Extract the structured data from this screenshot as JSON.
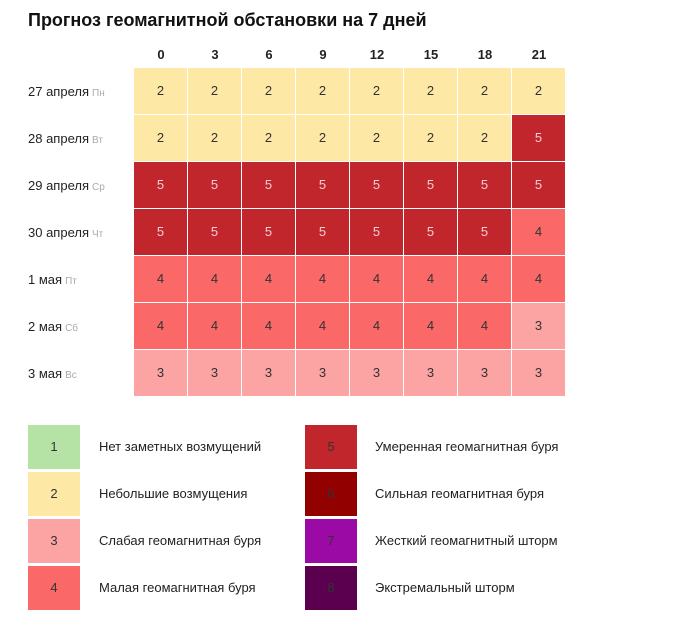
{
  "title": "Прогноз геомагнитной обстановки на 7 дней",
  "columns": [
    "0",
    "3",
    "6",
    "9",
    "12",
    "15",
    "18",
    "21"
  ],
  "rows": [
    {
      "date": "27 апреля",
      "day": "Пн",
      "values": [
        2,
        2,
        2,
        2,
        2,
        2,
        2,
        2
      ]
    },
    {
      "date": "28 апреля",
      "day": "Вт",
      "values": [
        2,
        2,
        2,
        2,
        2,
        2,
        2,
        5
      ]
    },
    {
      "date": "29 апреля",
      "day": "Ср",
      "values": [
        5,
        5,
        5,
        5,
        5,
        5,
        5,
        5
      ]
    },
    {
      "date": "30 апреля",
      "day": "Чт",
      "values": [
        5,
        5,
        5,
        5,
        5,
        5,
        5,
        4
      ]
    },
    {
      "date": "1 мая",
      "day": "Пт",
      "values": [
        4,
        4,
        4,
        4,
        4,
        4,
        4,
        4
      ]
    },
    {
      "date": "2 мая",
      "day": "Сб",
      "values": [
        4,
        4,
        4,
        4,
        4,
        4,
        4,
        3
      ]
    },
    {
      "date": "3 мая",
      "day": "Вс",
      "values": [
        3,
        3,
        3,
        3,
        3,
        3,
        3,
        3
      ]
    }
  ],
  "legend": [
    {
      "level": 1,
      "label": "Нет заметных возмущений",
      "color": "#b5e3a5"
    },
    {
      "level": 2,
      "label": "Небольшие возмущения",
      "color": "#fde8a6"
    },
    {
      "level": 3,
      "label": "Слабая геомагнитная буря",
      "color": "#fca3a3"
    },
    {
      "level": 4,
      "label": "Малая геомагнитная буря",
      "color": "#fb6868"
    },
    {
      "level": 5,
      "label": "Умеренная геомагнитная буря",
      "color": "#c1262c"
    },
    {
      "level": 6,
      "label": "Сильная геомагнитная буря",
      "color": "#930000"
    },
    {
      "level": 7,
      "label": "Жесткий геомагнитный шторм",
      "color": "#9c0aa6"
    },
    {
      "level": 8,
      "label": "Экстремальный шторм",
      "color": "#5b004f"
    }
  ]
}
